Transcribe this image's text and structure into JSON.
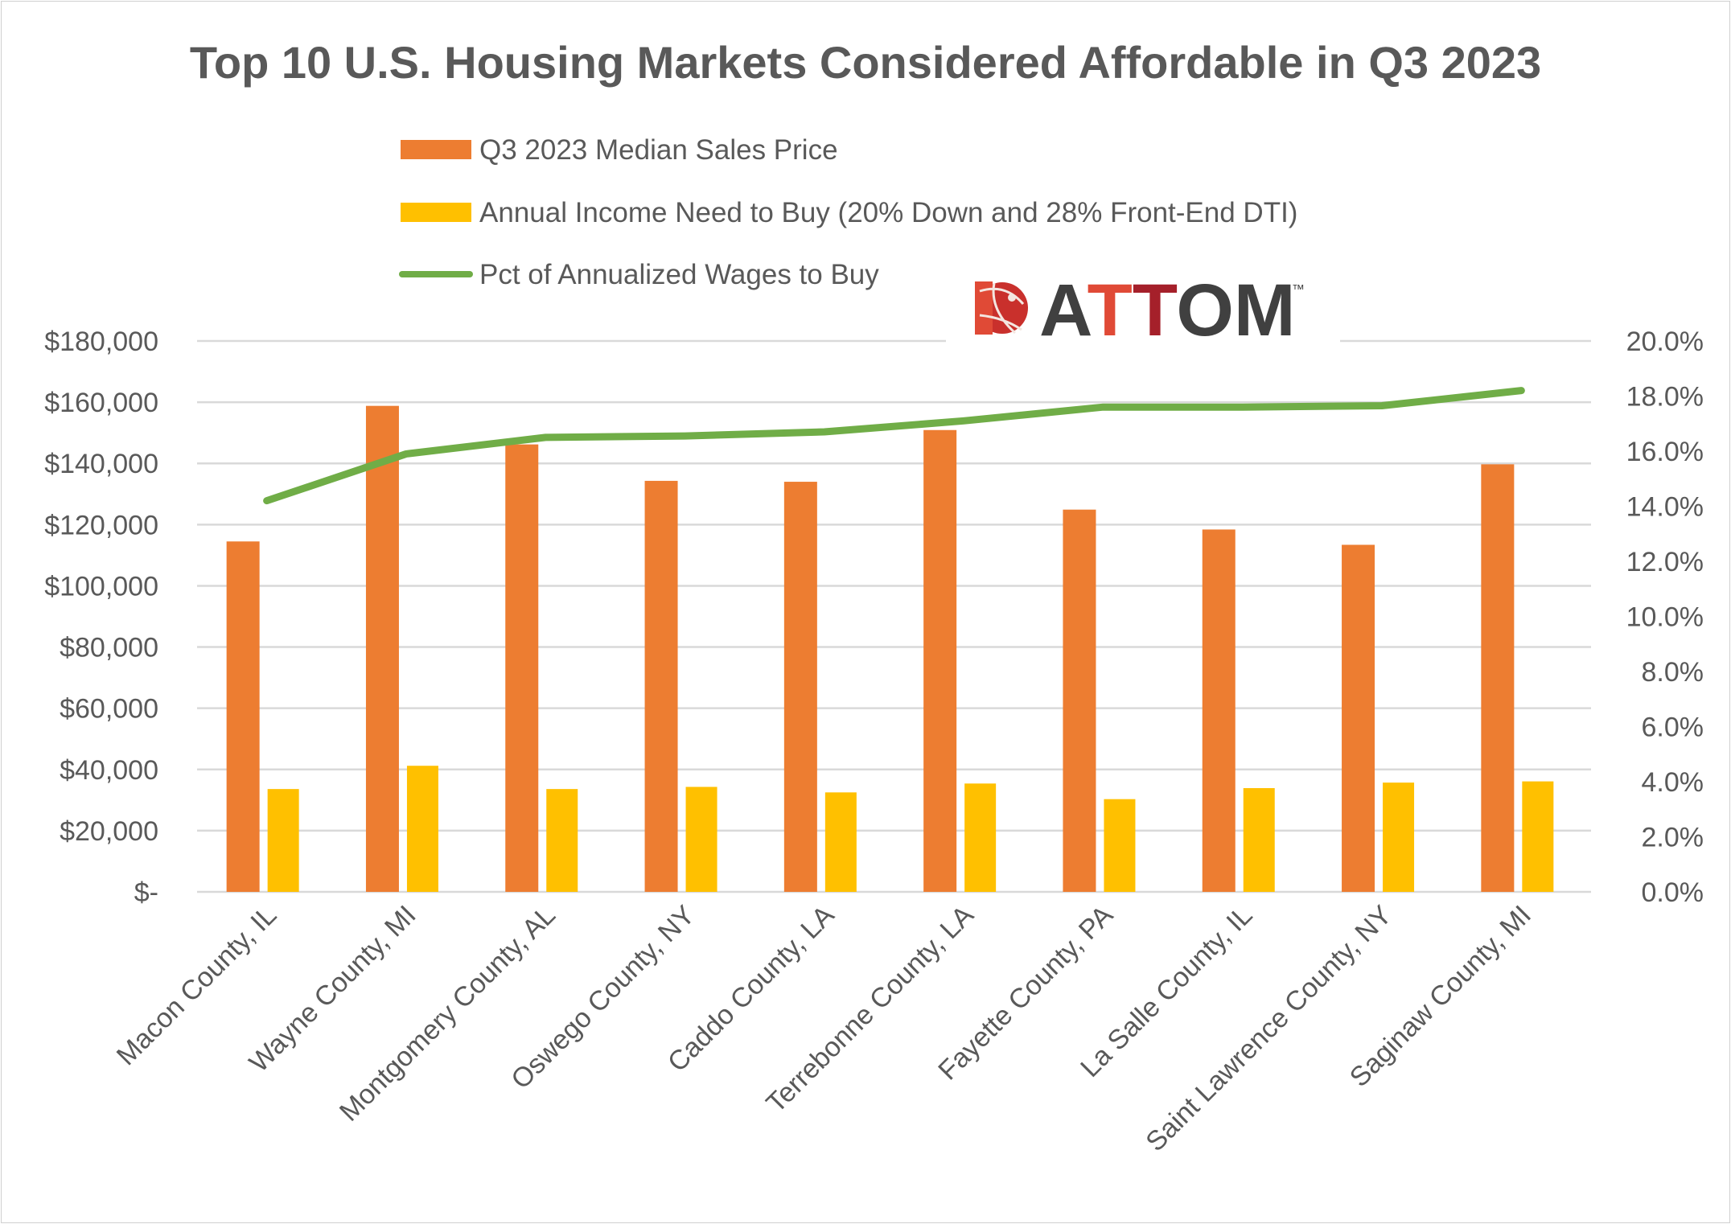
{
  "chart_data": {
    "type": "bar",
    "title": "Top 10 U.S. Housing Markets Considered Affordable in Q3 2023",
    "categories": [
      "Macon County, IL",
      "Wayne County, MI",
      "Montgomery County, AL",
      "Oswego County, NY",
      "Caddo County, LA",
      "Terrebonne County, LA",
      "Fayette County, PA",
      "La Salle County, IL",
      "Saint Lawrence County, NY",
      "Saginaw County, MI"
    ],
    "series": [
      {
        "name": "Q3 2023 Median Sales Price",
        "type": "bar",
        "axis": "left",
        "color": "#ED7D31",
        "values": [
          114500,
          158800,
          146200,
          134300,
          134000,
          150900,
          124900,
          118400,
          113400,
          139700
        ]
      },
      {
        "name": "Annual Income Need to Buy (20% Down and 28% Front-End DTI)",
        "type": "bar",
        "axis": "left",
        "color": "#FFC000",
        "values": [
          33600,
          41200,
          33600,
          34300,
          32500,
          35400,
          30300,
          33900,
          35700,
          36100
        ]
      },
      {
        "name": "Pct of Annualized Wages to Buy",
        "type": "line",
        "axis": "right",
        "color": "#70AD47",
        "values": [
          14.2,
          15.9,
          16.5,
          16.55,
          16.7,
          17.1,
          17.6,
          17.6,
          17.65,
          18.2
        ]
      }
    ],
    "left_axis": {
      "ylim": [
        0,
        180000
      ],
      "ticks": [
        "$-",
        "$20,000",
        "$40,000",
        "$60,000",
        "$80,000",
        "$100,000",
        "$120,000",
        "$140,000",
        "$160,000",
        "$180,000"
      ]
    },
    "right_axis": {
      "ylim": [
        0,
        20
      ],
      "ticks": [
        "0.0%",
        "2.0%",
        "4.0%",
        "6.0%",
        "8.0%",
        "10.0%",
        "12.0%",
        "14.0%",
        "16.0%",
        "18.0%",
        "20.0%"
      ]
    },
    "grid": true,
    "legend_placement": "top"
  },
  "logo": {
    "text": "ATTOM",
    "tm": "™"
  }
}
